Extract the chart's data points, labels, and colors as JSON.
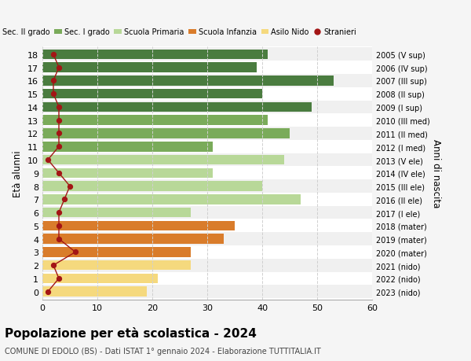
{
  "ages": [
    18,
    17,
    16,
    15,
    14,
    13,
    12,
    11,
    10,
    9,
    8,
    7,
    6,
    5,
    4,
    3,
    2,
    1,
    0
  ],
  "bar_values": [
    41,
    39,
    53,
    40,
    49,
    41,
    45,
    31,
    44,
    31,
    40,
    47,
    27,
    35,
    33,
    27,
    27,
    21,
    19
  ],
  "stranieri": [
    2,
    3,
    2,
    2,
    3,
    3,
    3,
    3,
    1,
    3,
    5,
    4,
    3,
    3,
    3,
    6,
    2,
    3,
    1
  ],
  "right_labels": [
    "2005 (V sup)",
    "2006 (IV sup)",
    "2007 (III sup)",
    "2008 (II sup)",
    "2009 (I sup)",
    "2010 (III med)",
    "2011 (II med)",
    "2012 (I med)",
    "2013 (V ele)",
    "2014 (IV ele)",
    "2015 (III ele)",
    "2016 (II ele)",
    "2017 (I ele)",
    "2018 (mater)",
    "2019 (mater)",
    "2020 (mater)",
    "2021 (nido)",
    "2022 (nido)",
    "2023 (nido)"
  ],
  "bar_colors": [
    "#4a7c3f",
    "#4a7c3f",
    "#4a7c3f",
    "#4a7c3f",
    "#4a7c3f",
    "#7aab5a",
    "#7aab5a",
    "#7aab5a",
    "#b8d898",
    "#b8d898",
    "#b8d898",
    "#b8d898",
    "#b8d898",
    "#d97c2b",
    "#d97c2b",
    "#d97c2b",
    "#f5d97e",
    "#f5d97e",
    "#f5d97e"
  ],
  "legend_labels": [
    "Sec. II grado",
    "Sec. I grado",
    "Scuola Primaria",
    "Scuola Infanzia",
    "Asilo Nido",
    "Stranieri"
  ],
  "legend_colors": [
    "#4a7c3f",
    "#7aab5a",
    "#b8d898",
    "#d97c2b",
    "#f5d97e",
    "#a31515"
  ],
  "ylabel": "Età alunni",
  "right_ylabel": "Anni di nascita",
  "title": "Popolazione per età scolastica - 2024",
  "subtitle": "COMUNE DI EDOLO (BS) - Dati ISTAT 1° gennaio 2024 - Elaborazione TUTTITALIA.IT",
  "xlim": [
    0,
    60
  ],
  "xticks": [
    0,
    10,
    20,
    30,
    40,
    50,
    60
  ],
  "bg_color": "#f5f5f5",
  "bar_bg_color": "#ffffff",
  "row_alt_color": "#f0f0f0",
  "stranieri_color": "#a31515",
  "grid_color": "#d0d0d0"
}
